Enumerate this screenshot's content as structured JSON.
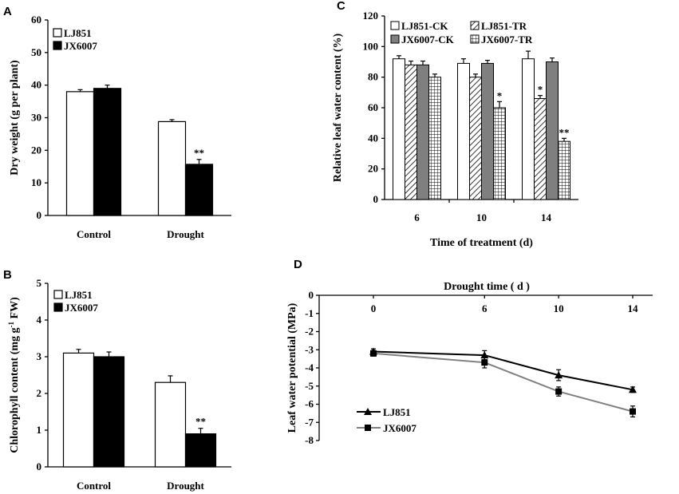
{
  "chart_data": [
    {
      "panel": "A",
      "type": "bar",
      "categories": [
        "Control",
        "Drought"
      ],
      "series": [
        {
          "name": "LJ851",
          "values": [
            38,
            28.8
          ],
          "errors": [
            0.6,
            0.6
          ],
          "color": "#ffffff",
          "annotations": [
            "",
            ""
          ]
        },
        {
          "name": "JX6007",
          "values": [
            39,
            15.7
          ],
          "errors": [
            1.0,
            1.5
          ],
          "color": "#000000",
          "annotations": [
            "",
            "**"
          ]
        }
      ],
      "ylabel": "Dry weight (g per plant)",
      "ylim": [
        0,
        60
      ],
      "yticks": [
        "0",
        "10",
        "20",
        "30",
        "40",
        "50",
        "60"
      ],
      "legend": "top-left"
    },
    {
      "panel": "B",
      "type": "bar",
      "categories": [
        "Control",
        "Drought"
      ],
      "series": [
        {
          "name": "LJ851",
          "values": [
            3.1,
            2.3
          ],
          "errors": [
            0.1,
            0.18
          ],
          "color": "#ffffff",
          "annotations": [
            "",
            ""
          ]
        },
        {
          "name": "JX6007",
          "values": [
            3.0,
            0.9
          ],
          "errors": [
            0.13,
            0.15
          ],
          "color": "#000000",
          "annotations": [
            "",
            "**"
          ]
        }
      ],
      "ylabel": "Chlorophyll content (mg g",
      "ylabel_sup": "-1",
      "ylabel_end": " FW)",
      "ylim": [
        0,
        5
      ],
      "yticks": [
        "0",
        "1",
        "2",
        "3",
        "4",
        "5"
      ],
      "legend": "top-left"
    },
    {
      "panel": "C",
      "type": "bar",
      "categories": [
        "6",
        "10",
        "14"
      ],
      "series": [
        {
          "name": "LJ851-CK",
          "values": [
            92,
            89,
            92
          ],
          "errors": [
            2,
            3,
            5
          ],
          "pattern": "white",
          "annotations": [
            "",
            "",
            ""
          ]
        },
        {
          "name": "LJ851-TR",
          "values": [
            88,
            80,
            66
          ],
          "errors": [
            2.5,
            2,
            2
          ],
          "pattern": "hatch",
          "annotations": [
            "",
            "",
            "*"
          ]
        },
        {
          "name": "JX6007-CK",
          "values": [
            88,
            89,
            90
          ],
          "errors": [
            2.5,
            2,
            2.5
          ],
          "pattern": "gray",
          "annotations": [
            "",
            "",
            ""
          ]
        },
        {
          "name": "JX6007-TR",
          "values": [
            80,
            60,
            38
          ],
          "errors": [
            2,
            4,
            2
          ],
          "pattern": "grid",
          "annotations": [
            "",
            "*",
            "**"
          ]
        }
      ],
      "xlabel": "Time of treatment (d)",
      "ylabel": "Relative leaf water content (%)",
      "ylim": [
        0,
        120
      ],
      "yticks": [
        "0",
        "20",
        "40",
        "60",
        "80",
        "100",
        "120"
      ],
      "legend": "top"
    },
    {
      "panel": "D",
      "type": "line",
      "x": [
        0,
        6,
        10,
        14
      ],
      "xticks": [
        "0",
        "6",
        "10",
        "14"
      ],
      "series": [
        {
          "name": "LJ851",
          "values": [
            -3.1,
            -3.3,
            -4.4,
            -5.2
          ],
          "errors": [
            0.15,
            0.25,
            0.3,
            0.15
          ],
          "color": "#000000",
          "marker": "triangle"
        },
        {
          "name": "JX6007",
          "values": [
            -3.2,
            -3.7,
            -5.3,
            -6.4
          ],
          "errors": [
            0.15,
            0.3,
            0.25,
            0.3
          ],
          "color": "#7f7f7f",
          "marker": "square"
        }
      ],
      "xlabel": "Drought time ( d )",
      "ylabel": "Leaf water potential (MPa)",
      "ylim": [
        -8,
        0
      ],
      "yticks": [
        "0",
        "-1",
        "-2",
        "-3",
        "-4",
        "-5",
        "-6",
        "-7",
        "-8"
      ],
      "legend": "bottom-left"
    }
  ]
}
